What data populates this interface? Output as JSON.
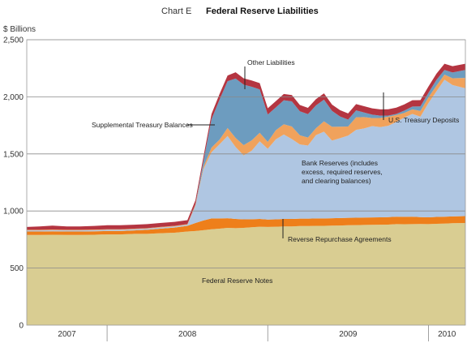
{
  "chart_data": {
    "type": "area",
    "title_prefix": "Chart E",
    "title": "Federal Reserve Liabilities",
    "ylabel": "$ Billions",
    "ylim": [
      0,
      2500
    ],
    "yticks": [
      0,
      500,
      1000,
      1500,
      2000,
      2500
    ],
    "x_range": [
      2007.5,
      2010.23
    ],
    "x_labels": [
      {
        "label": "2007",
        "year": 2007
      },
      {
        "label": "2008",
        "year": 2008
      },
      {
        "label": "2009",
        "year": 2009
      },
      {
        "label": "2010",
        "year": 2010
      }
    ],
    "x": [
      2007.5,
      2007.58,
      2007.66,
      2007.75,
      2007.83,
      2007.92,
      2008.0,
      2008.08,
      2008.17,
      2008.25,
      2008.33,
      2008.42,
      2008.5,
      2008.55,
      2008.6,
      2008.65,
      2008.7,
      2008.75,
      2008.8,
      2008.85,
      2008.9,
      2008.95,
      2009.0,
      2009.05,
      2009.1,
      2009.15,
      2009.2,
      2009.25,
      2009.3,
      2009.35,
      2009.4,
      2009.45,
      2009.5,
      2009.55,
      2009.6,
      2009.65,
      2009.7,
      2009.75,
      2009.8,
      2009.85,
      2009.9,
      2009.95,
      2010.0,
      2010.05,
      2010.1,
      2010.15,
      2010.23
    ],
    "series": [
      {
        "name": "Federal Reserve Notes",
        "color": "#d9cd92",
        "values": [
          790,
          790,
          792,
          790,
          790,
          792,
          795,
          795,
          800,
          800,
          805,
          810,
          820,
          825,
          832,
          840,
          845,
          852,
          850,
          852,
          858,
          862,
          860,
          862,
          865,
          865,
          868,
          868,
          870,
          870,
          872,
          873,
          875,
          876,
          878,
          879,
          880,
          881,
          885,
          884,
          885,
          886,
          885,
          888,
          890,
          893,
          895
        ]
      },
      {
        "name": "Reverse Repurchase Agreements",
        "color": "#ee7f1a",
        "values": [
          30,
          30,
          30,
          30,
          30,
          30,
          30,
          30,
          30,
          35,
          40,
          45,
          50,
          70,
          85,
          95,
          90,
          85,
          80,
          75,
          70,
          68,
          65,
          65,
          65,
          65,
          65,
          65,
          65,
          65,
          65,
          65,
          65,
          65,
          65,
          65,
          65,
          65,
          65,
          65,
          65,
          60,
          60,
          60,
          60,
          60,
          60
        ]
      },
      {
        "name": "Bank Reserves (includes excess, required reserves, and clearing balances)",
        "color": "#afc6e2",
        "values": [
          10,
          10,
          10,
          10,
          10,
          10,
          10,
          10,
          10,
          10,
          10,
          10,
          10,
          150,
          450,
          580,
          650,
          720,
          630,
          560,
          600,
          680,
          620,
          700,
          740,
          700,
          650,
          640,
          730,
          760,
          680,
          700,
          720,
          770,
          780,
          800,
          790,
          800,
          830,
          870,
          900,
          880,
          1000,
          1100,
          1200,
          1150,
          1120
        ]
      },
      {
        "name": "U.S. Treasury Deposits",
        "color": "#f0a25c",
        "values": [
          5,
          5,
          5,
          5,
          5,
          5,
          5,
          5,
          5,
          5,
          5,
          5,
          5,
          10,
          20,
          40,
          40,
          70,
          80,
          90,
          90,
          75,
          60,
          80,
          90,
          110,
          80,
          70,
          60,
          90,
          120,
          100,
          80,
          110,
          100,
          70,
          80,
          80,
          60,
          40,
          40,
          50,
          50,
          50,
          45,
          60,
          90
        ]
      },
      {
        "name": "Supplemental Treasury Balances",
        "color": "#6d9cbf",
        "values": [
          0,
          0,
          0,
          0,
          0,
          0,
          0,
          0,
          0,
          0,
          0,
          0,
          0,
          5,
          50,
          250,
          350,
          410,
          520,
          530,
          470,
          380,
          240,
          200,
          210,
          220,
          210,
          205,
          200,
          190,
          140,
          90,
          60,
          60,
          40,
          30,
          20,
          10,
          10,
          20,
          25,
          40,
          40,
          50,
          40,
          50,
          70
        ]
      },
      {
        "name": "Other Liabilities",
        "color": "#b43541",
        "values": [
          25,
          30,
          35,
          30,
          30,
          32,
          35,
          35,
          35,
          35,
          35,
          35,
          35,
          35,
          40,
          45,
          50,
          50,
          55,
          55,
          55,
          55,
          55,
          55,
          55,
          55,
          55,
          55,
          55,
          55,
          55,
          55,
          55,
          55,
          55,
          55,
          55,
          55,
          55,
          55,
          55,
          55,
          55,
          55,
          55,
          55,
          55
        ]
      }
    ],
    "annotations": {
      "other_liabilities": "Other Liabilities",
      "supplemental_treasury": "Supplemental Treasury Balances",
      "treasury_deposits": "U.S. Treasury Deposits",
      "bank_reserves": [
        "Bank Reserves (includes",
        "excess, required reserves,",
        "and clearing balances)"
      ],
      "reverse_repo": "Reverse Repurchase Agreements",
      "fr_notes": "Federal Reserve Notes"
    },
    "grid": "horizontal",
    "legend": "none"
  }
}
